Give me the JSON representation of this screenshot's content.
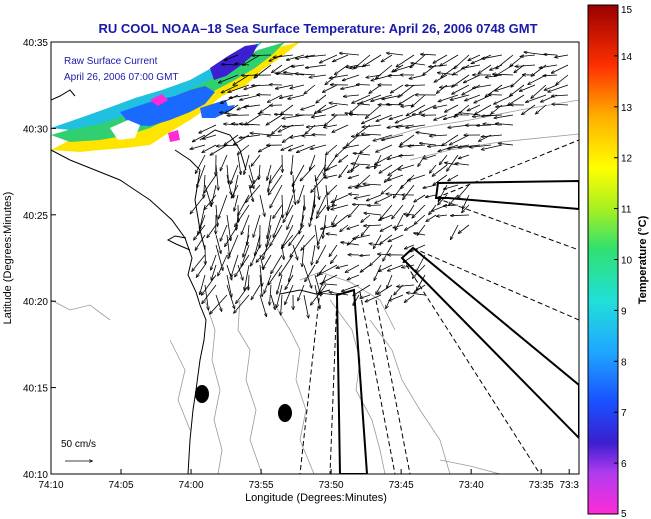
{
  "chart_data": {
    "type": "vector-field",
    "title": "RU COOL  NOAA–18  Sea Surface Temperature:  April 26, 2006 0748 GMT",
    "xlabel": "Longitude (Degrees:Minutes)",
    "ylabel": "Latitude (Degrees:Minutes)",
    "xlim_minutes_west": [
      70,
      93
    ],
    "ylim_minutes_north": [
      10,
      35
    ],
    "x_ticks": [
      {
        "value": 70,
        "label": "74:10"
      },
      {
        "value": 65,
        "label": "74:05"
      },
      {
        "value": 60,
        "label": "74:00"
      },
      {
        "value": 55,
        "label": "73:55"
      },
      {
        "value": 50,
        "label": "73:50"
      },
      {
        "value": 45,
        "label": "73:45"
      },
      {
        "value": 40,
        "label": "73:40"
      },
      {
        "value": 35,
        "label": "73:35"
      },
      {
        "value": 33,
        "label": "73:3"
      }
    ],
    "y_ticks": [
      {
        "value": 35,
        "label": "40:35"
      },
      {
        "value": 30,
        "label": "40:30"
      },
      {
        "value": 25,
        "label": "40:25"
      },
      {
        "value": 20,
        "label": "40:20"
      },
      {
        "value": 15,
        "label": "40:15"
      },
      {
        "value": 10,
        "label": "40:10"
      }
    ],
    "annotations": {
      "current_label": "Raw Surface Current",
      "current_time": "April 26, 2006 07:00 GMT",
      "scale_label": "50 cm/s"
    },
    "colorbar": {
      "label": "Temperature (°C)",
      "min": 5,
      "max": 15,
      "ticks": [
        "15",
        "14",
        "13",
        "12",
        "11",
        "10",
        "9",
        "8",
        "7",
        "6",
        "5"
      ]
    },
    "colors": {
      "title": "#1a1aa8",
      "land_outline": "#000000",
      "bathymetry": "#999999"
    }
  }
}
